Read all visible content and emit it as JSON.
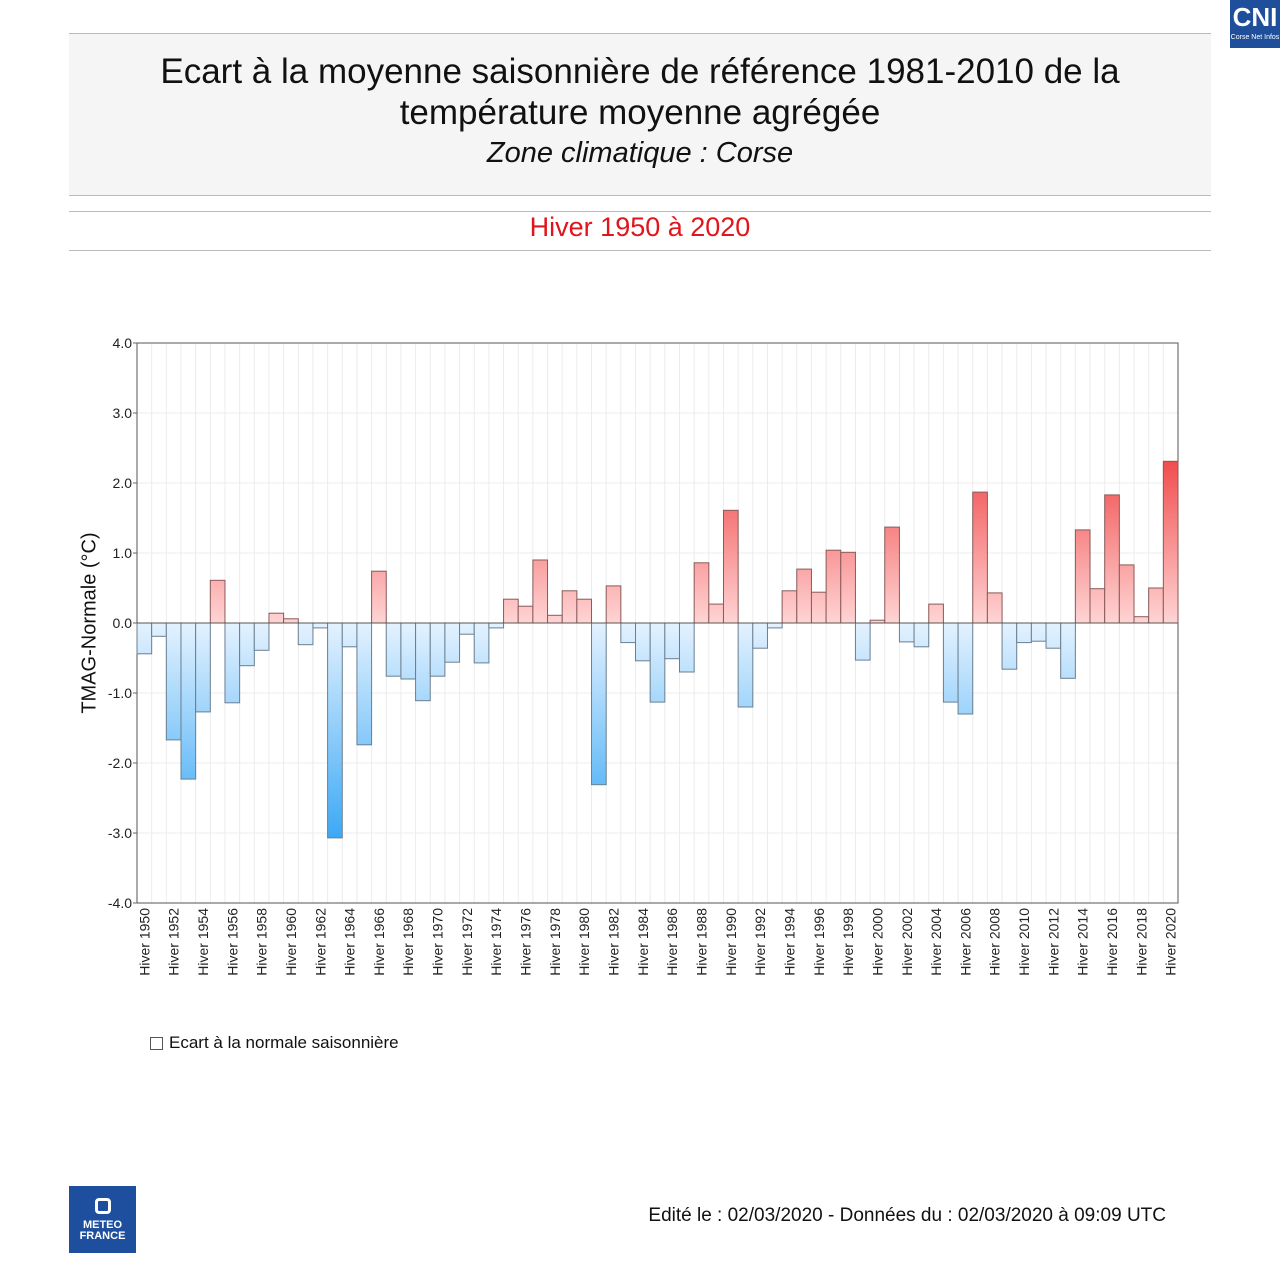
{
  "header": {
    "title_line1": "Ecart à la moyenne saisonnière  de référence 1981-2010  de la",
    "title_line2": "température moyenne  agrégée",
    "subtitle": "Zone climatique : Corse"
  },
  "season": "Hiver 1950 à 2020",
  "legend": {
    "label": "Ecart à la normale saisonnière"
  },
  "footer": {
    "text": "Edité le : 02/03/2020 - Données du : 02/03/2020 à 09:09 UTC"
  },
  "logos": {
    "meteo_france": "METEO FRANCE",
    "cni": "CNI",
    "cni_sub": "Corse Net Infos"
  },
  "colors": {
    "warm": "#f04848",
    "warm_light": "#ffd4d4",
    "cold": "#3aa8f5",
    "cold_light": "#e4f2ff"
  },
  "chart_data": {
    "type": "bar",
    "ylabel": "TMAG-Normale (°C)",
    "ylim": [
      -4,
      4
    ],
    "yticks": [
      "4.0",
      "3.0",
      "2.0",
      "1.0",
      "0.0",
      "-1.0",
      "-2.0",
      "-3.0",
      "-4.0"
    ],
    "grid": true,
    "x_start": 1950,
    "category_prefix": "Hiver",
    "tick_labels": [
      "Hiver 1950",
      "Hiver 1952",
      "Hiver 1954",
      "Hiver 1956",
      "Hiver 1958",
      "Hiver 1960",
      "Hiver 1962",
      "Hiver 1964",
      "Hiver 1966",
      "Hiver 1968",
      "Hiver 1970",
      "Hiver 1972",
      "Hiver 1974",
      "Hiver 1976",
      "Hiver 1978",
      "Hiver 1980",
      "Hiver 1982",
      "Hiver 1984",
      "Hiver 1986",
      "Hiver 1988",
      "Hiver 1990",
      "Hiver 1992",
      "Hiver 1994",
      "Hiver 1996",
      "Hiver 1998",
      "Hiver 2000",
      "Hiver 2002",
      "Hiver 2004",
      "Hiver 2006",
      "Hiver 2008",
      "Hiver 2010",
      "Hiver 2012",
      "Hiver 2014",
      "Hiver 2016",
      "Hiver 2018",
      "Hiver 2020"
    ],
    "values": [
      -0.44,
      -0.19,
      -1.67,
      -2.23,
      -1.27,
      0.61,
      -1.14,
      -0.61,
      -0.39,
      0.14,
      0.06,
      -0.31,
      -0.07,
      -3.07,
      -0.34,
      -1.74,
      0.74,
      -0.76,
      -0.8,
      -1.11,
      -0.76,
      -0.56,
      -0.16,
      -0.57,
      -0.07,
      0.34,
      0.24,
      0.9,
      0.11,
      0.46,
      0.34,
      -2.31,
      0.53,
      -0.28,
      -0.54,
      -1.13,
      -0.51,
      -0.7,
      0.86,
      0.27,
      1.61,
      -1.2,
      -0.36,
      -0.07,
      0.46,
      0.77,
      0.44,
      1.04,
      1.01,
      -0.53,
      0.04,
      1.37,
      -0.27,
      -0.34,
      0.27,
      -1.13,
      -1.3,
      1.87,
      0.43,
      -0.66,
      -0.28,
      -0.26,
      -0.36,
      -0.79,
      1.33,
      0.49,
      1.83,
      0.83,
      0.09,
      0.5,
      2.31
    ],
    "legend": "bottom-left"
  }
}
